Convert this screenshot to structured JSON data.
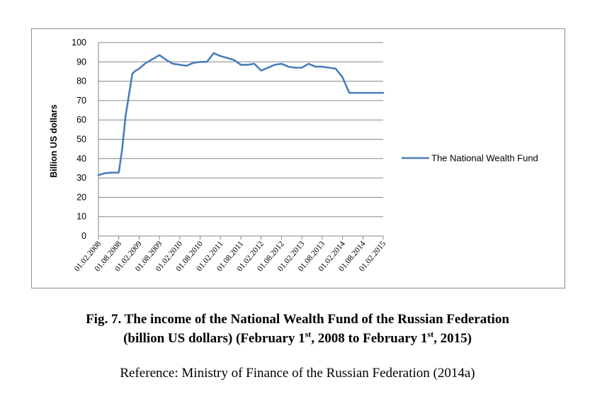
{
  "chart_data": {
    "type": "line",
    "ylabel": "Billion US dollars",
    "ylim": [
      0,
      100
    ],
    "yticks": [
      0,
      10,
      20,
      30,
      40,
      50,
      60,
      70,
      80,
      90,
      100
    ],
    "grid": true,
    "legend_position": "right",
    "xtick_labels": [
      "01.02.2008",
      "01.08.2008",
      "01.02.2009",
      "01.08.2009",
      "01.02.2010",
      "01.08.2010",
      "01.02.2011",
      "01.08.2011",
      "01.02.2012",
      "01.08.2012",
      "01.02.2013",
      "01.08.2013",
      "01.02.2014",
      "01.08.2014",
      "01.02.2015"
    ],
    "x": [
      "01.02.2008",
      "01.04.2008",
      "01.06.2008",
      "01.08.2008",
      "01.09.2008",
      "01.10.2008",
      "01.11.2008",
      "01.12.2008",
      "01.01.2009",
      "01.02.2009",
      "01.04.2009",
      "01.06.2009",
      "01.08.2009",
      "01.10.2009",
      "01.12.2009",
      "01.02.2010",
      "01.04.2010",
      "01.06.2010",
      "01.08.2010",
      "01.10.2010",
      "01.12.2010",
      "01.02.2011",
      "01.04.2011",
      "01.06.2011",
      "01.08.2011",
      "01.10.2011",
      "01.12.2011",
      "01.02.2012",
      "01.04.2012",
      "01.06.2012",
      "01.08.2012",
      "01.10.2012",
      "01.12.2012",
      "01.02.2013",
      "01.04.2013",
      "01.06.2013",
      "01.08.2013",
      "01.10.2013",
      "01.12.2013",
      "01.02.2014",
      "01.04.2014",
      "01.06.2014",
      "01.08.2014",
      "01.10.2014",
      "01.12.2014",
      "01.02.2015"
    ],
    "series": [
      {
        "name": "The National Wealth Fund",
        "color": "#4a7ebb",
        "values": [
          31.5,
          32.5,
          32.8,
          32.8,
          45,
          62,
          73,
          84,
          85.5,
          86.5,
          89.5,
          91.5,
          93.5,
          91,
          89,
          88.5,
          88,
          89.5,
          90,
          90,
          94.5,
          93,
          92,
          91,
          88.5,
          88.5,
          89,
          85.5,
          87,
          88.5,
          89,
          87.5,
          87,
          87,
          89,
          87.5,
          87.5,
          87,
          86.5,
          82,
          74,
          74,
          74,
          74,
          74,
          74
        ]
      }
    ]
  },
  "caption": {
    "line1": "Fig. 7. The income of the National Wealth Fund of the Russian Federation",
    "line2_part1": "(billion US dollars) (February 1",
    "sup1": "st",
    "line2_part2": ", 2008 to February 1",
    "sup2": "st",
    "line2_part3": ", 2015)"
  },
  "reference": "Reference: Ministry of Finance of the Russian Federation (2014a)"
}
